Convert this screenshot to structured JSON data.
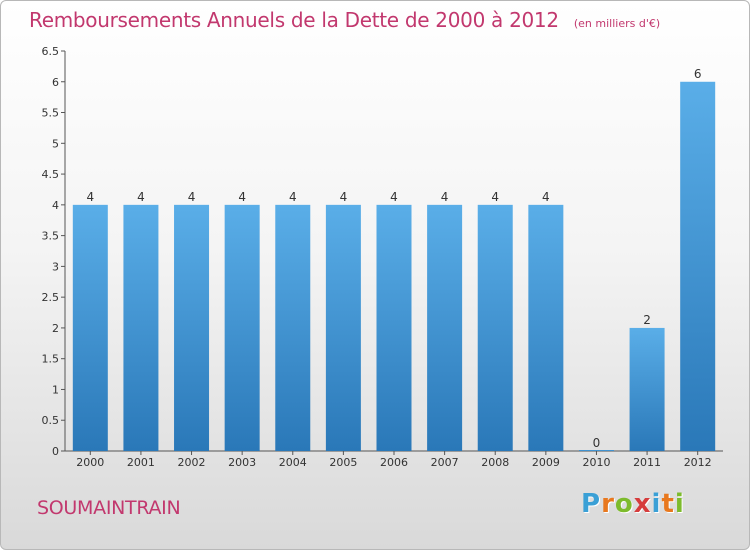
{
  "header": {
    "title": "Remboursements Annuels de la Dette de 2000 à 2012",
    "subtitle": "(en milliers d'€)"
  },
  "footer": {
    "town": "SOUMAINTRAIN",
    "logo_letters": [
      "P",
      "r",
      "o",
      "x",
      "i",
      "t",
      "i"
    ],
    "logo_colors": [
      "#3aa0d6",
      "#e8781e",
      "#7dbb2c",
      "#d63c3c",
      "#3aa0d6",
      "#e8781e",
      "#7dbb2c"
    ]
  },
  "chart_data": {
    "type": "bar",
    "categories": [
      "2000",
      "2001",
      "2002",
      "2003",
      "2004",
      "2005",
      "2006",
      "2007",
      "2008",
      "2009",
      "2010",
      "2011",
      "2012"
    ],
    "values": [
      4,
      4,
      4,
      4,
      4,
      4,
      4,
      4,
      4,
      4,
      0,
      2,
      6
    ],
    "data_labels": [
      "4",
      "4",
      "4",
      "4",
      "4",
      "4",
      "4",
      "4",
      "4",
      "4",
      "0",
      "2",
      "6"
    ],
    "yticks": [
      "0",
      "0.5",
      "1",
      "1.5",
      "2",
      "2.5",
      "3",
      "3.5",
      "4",
      "4.5",
      "5",
      "5.5",
      "6",
      "6.5"
    ],
    "ylim": [
      0,
      6.5
    ],
    "title": "Remboursements Annuels de la Dette de 2000 à 2012",
    "xlabel": "",
    "ylabel": "",
    "grid": false,
    "bar_color_top": "#5aaee8",
    "bar_color_bottom": "#2a78b8"
  }
}
